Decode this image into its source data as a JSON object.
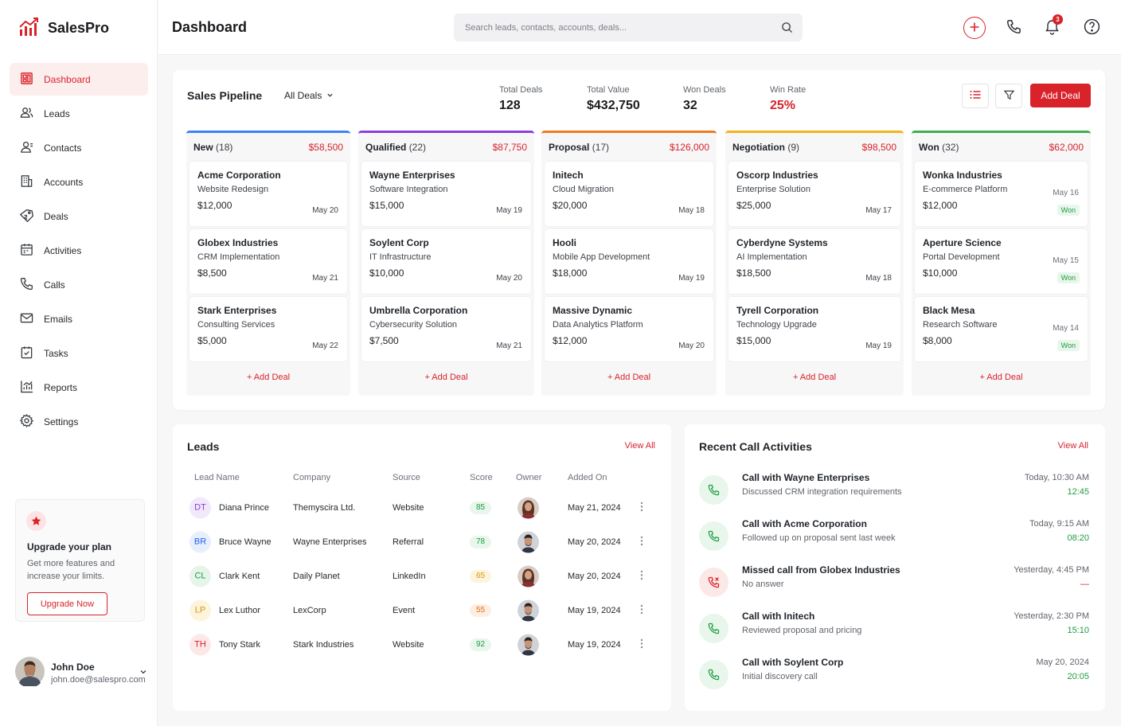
{
  "app": {
    "name": "SalesPro",
    "page_title": "Dashboard",
    "accent": "#d8232a"
  },
  "sidebar": {
    "items": [
      {
        "label": "Dashboard",
        "icon": "dashboard-icon",
        "active": true
      },
      {
        "label": "Leads",
        "icon": "users-icon"
      },
      {
        "label": "Contacts",
        "icon": "contacts-icon"
      },
      {
        "label": "Accounts",
        "icon": "building-icon"
      },
      {
        "label": "Deals",
        "icon": "tag-icon"
      },
      {
        "label": "Activities",
        "icon": "calendar-icon"
      },
      {
        "label": "Calls",
        "icon": "phone-icon"
      },
      {
        "label": "Emails",
        "icon": "mail-icon"
      },
      {
        "label": "Tasks",
        "icon": "task-icon"
      },
      {
        "label": "Reports",
        "icon": "chart-icon"
      },
      {
        "label": "Settings",
        "icon": "gear-icon"
      }
    ],
    "upgrade": {
      "title": "Upgrade your plan",
      "text": "Get more features and increase your limits.",
      "button": "Upgrade Now"
    },
    "user": {
      "name": "John Doe",
      "email": "john.doe@salespro.com"
    }
  },
  "header": {
    "search_placeholder": "Search leads, contacts, accounts, deals...",
    "notification_count": "3"
  },
  "pipeline": {
    "title": "Sales Pipeline",
    "filter": "All Deals",
    "stats": [
      {
        "label": "Total Deals",
        "value": "128"
      },
      {
        "label": "Total Value",
        "value": "$432,750"
      },
      {
        "label": "Won Deals",
        "value": "32"
      },
      {
        "label": "Win Rate",
        "value": "25%"
      }
    ],
    "add_button": "Add Deal",
    "add_link": "+ Add Deal",
    "columns": [
      {
        "name": "New",
        "count": "(18)",
        "value": "$58,500",
        "color": "#3b82f6",
        "deals": [
          {
            "company": "Acme Corporation",
            "project": "Website Redesign",
            "amount": "$12,000",
            "date": "May 20"
          },
          {
            "company": "Globex Industries",
            "project": "CRM Implementation",
            "amount": "$8,500",
            "date": "May 21"
          },
          {
            "company": "Stark Enterprises",
            "project": "Consulting Services",
            "amount": "$5,000",
            "date": "May 22"
          }
        ]
      },
      {
        "name": "Qualified",
        "count": "(22)",
        "value": "$87,750",
        "color": "#8b3fd9",
        "deals": [
          {
            "company": "Wayne Enterprises",
            "project": "Software Integration",
            "amount": "$15,000",
            "date": "May 19"
          },
          {
            "company": "Soylent Corp",
            "project": "IT Infrastructure",
            "amount": "$10,000",
            "date": "May 20"
          },
          {
            "company": "Umbrella Corporation",
            "project": "Cybersecurity Solution",
            "amount": "$7,500",
            "date": "May 21"
          }
        ]
      },
      {
        "name": "Proposal",
        "count": "(17)",
        "value": "$126,000",
        "color": "#f07a22",
        "deals": [
          {
            "company": "Initech",
            "project": "Cloud Migration",
            "amount": "$20,000",
            "date": "May 18"
          },
          {
            "company": "Hooli",
            "project": "Mobile App Development",
            "amount": "$18,000",
            "date": "May 19"
          },
          {
            "company": "Massive Dynamic",
            "project": "Data Analytics Platform",
            "amount": "$12,000",
            "date": "May 20"
          }
        ]
      },
      {
        "name": "Negotiation",
        "count": "(9)",
        "value": "$98,500",
        "color": "#f3b41b",
        "deals": [
          {
            "company": "Oscorp Industries",
            "project": "Enterprise Solution",
            "amount": "$25,000",
            "date": "May 17"
          },
          {
            "company": "Cyberdyne Systems",
            "project": "AI Implementation",
            "amount": "$18,500",
            "date": "May 18"
          },
          {
            "company": "Tyrell Corporation",
            "project": "Technology Upgrade",
            "amount": "$15,000",
            "date": "May 19"
          }
        ]
      },
      {
        "name": "Won",
        "count": "(32)",
        "value": "$62,000",
        "color": "#3fae4f",
        "deals": [
          {
            "company": "Wonka Industries",
            "project": "E-commerce Platform",
            "amount": "$12,000",
            "date": "May 16",
            "badge": "Won"
          },
          {
            "company": "Aperture Science",
            "project": "Portal Development",
            "amount": "$10,000",
            "date": "May 15",
            "badge": "Won"
          },
          {
            "company": "Black Mesa",
            "project": "Research Software",
            "amount": "$8,000",
            "date": "May 14",
            "badge": "Won"
          }
        ]
      }
    ]
  },
  "leads": {
    "title": "Leads",
    "view_all": "View All",
    "headers": [
      "Lead Name",
      "Company",
      "Source",
      "Score",
      "Owner",
      "Added On"
    ],
    "rows": [
      {
        "initials": "DT",
        "name": "Diana Prince",
        "company": "Themyscira Ltd.",
        "source": "Website",
        "score": "85",
        "score_color": "#1f9d3f",
        "score_bg": "#e8f6ec",
        "added": "May 21, 2024",
        "init_color": "#8b3fd9",
        "init_bg": "#f1e8fb"
      },
      {
        "initials": "BR",
        "name": "Bruce Wayne",
        "company": "Wayne Enterprises",
        "source": "Referral",
        "score": "78",
        "score_color": "#1f9d3f",
        "score_bg": "#e8f6ec",
        "added": "May 20, 2024",
        "init_color": "#2563eb",
        "init_bg": "#e6effd"
      },
      {
        "initials": "CL",
        "name": "Clark Kent",
        "company": "Daily Planet",
        "source": "LinkedIn",
        "score": "65",
        "score_color": "#d99a00",
        "score_bg": "#fdf4dd",
        "added": "May 20, 2024",
        "init_color": "#1f9d3f",
        "init_bg": "#e6f5e9"
      },
      {
        "initials": "LP",
        "name": "Lex Luthor",
        "company": "LexCorp",
        "source": "Event",
        "score": "55",
        "score_color": "#e46a1c",
        "score_bg": "#fdeee2",
        "added": "May 19, 2024",
        "init_color": "#d99a00",
        "init_bg": "#fdf4dd"
      },
      {
        "initials": "TH",
        "name": "Tony Stark",
        "company": "Stark Industries",
        "source": "Website",
        "score": "92",
        "score_color": "#1f9d3f",
        "score_bg": "#e8f6ec",
        "added": "May 19, 2024",
        "init_color": "#d8232a",
        "init_bg": "#fde8e8"
      }
    ]
  },
  "calls": {
    "title": "Recent Call Activities",
    "view_all": "View All",
    "items": [
      {
        "title": "Call with Wayne Enterprises",
        "desc": "Discussed CRM integration requirements",
        "time": "Today, 10:30 AM",
        "duration": "12:45",
        "missed": false
      },
      {
        "title": "Call with Acme Corporation",
        "desc": "Followed up on proposal sent last week",
        "time": "Today, 9:15 AM",
        "duration": "08:20",
        "missed": false
      },
      {
        "title": "Missed call from Globex Industries",
        "desc": "No answer",
        "time": "Yesterday, 4:45 PM",
        "duration": "—",
        "missed": true
      },
      {
        "title": "Call with Initech",
        "desc": "Reviewed proposal and pricing",
        "time": "Yesterday, 2:30 PM",
        "duration": "15:10",
        "missed": false
      },
      {
        "title": "Call with Soylent Corp",
        "desc": "Initial discovery call",
        "time": "May 20, 2024",
        "duration": "20:05",
        "missed": false
      }
    ]
  }
}
